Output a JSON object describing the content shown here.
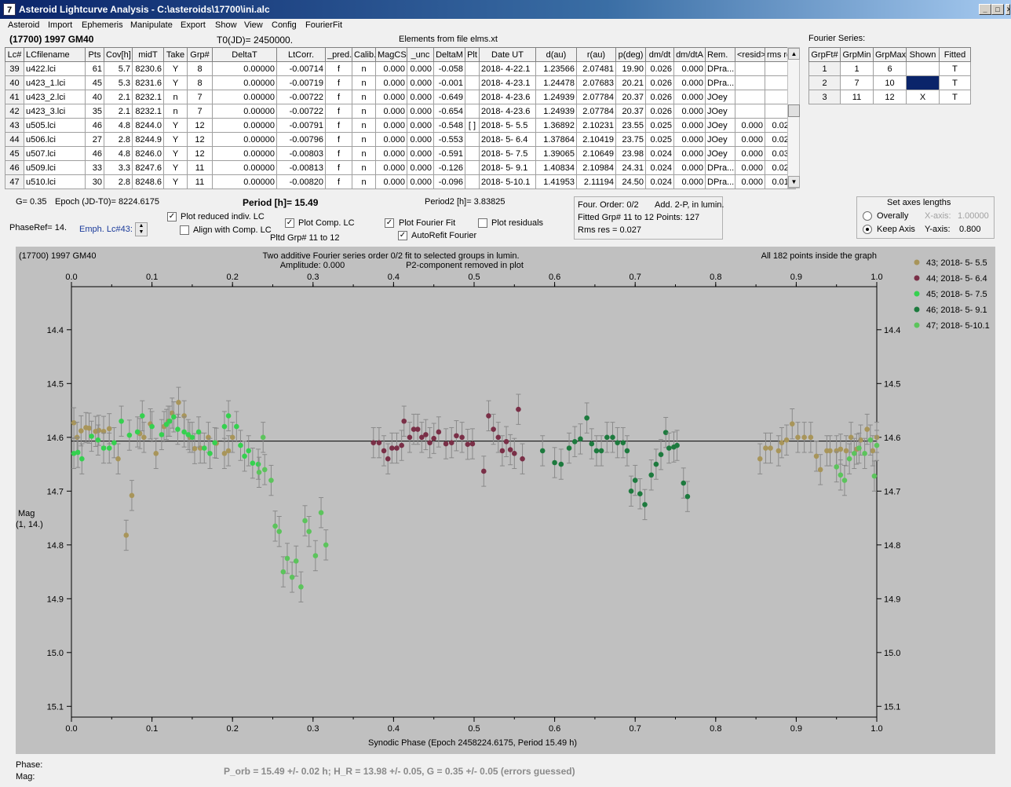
{
  "window": {
    "icon_glyph": "7",
    "title": "Asteroid Lightcurve Analysis - C:\\asteroids\\17700\\ini.alc",
    "min_glyph": "_",
    "max_glyph": "□",
    "close_glyph": "✕"
  },
  "menu": [
    "Asteroid",
    "Import",
    "Ephemeris",
    "Manipulate",
    "Export",
    "Show",
    "View",
    "Config",
    "FourierFit"
  ],
  "header": {
    "asteroid": "(17700) 1997 GM40",
    "t0": "T0(JD)= 2450000.",
    "elements": "Elements from file elms.xt",
    "fourier_label": "Fourier Series:"
  },
  "lc_table": {
    "columns": [
      "Lc#",
      "LCfilename",
      "Pts",
      "Cov[h]",
      "midT",
      "Take",
      "Grp#",
      "DeltaT",
      "LtCorr.",
      "_pred.",
      "Calib.",
      "MagCS",
      "_unc",
      "DeltaM",
      "Plt",
      "Date UT",
      "d(au)",
      "r(au)",
      "p(deg)",
      "dm/dt",
      "dm/dtA",
      "Rem.",
      "<resid>",
      "rms res"
    ],
    "rows": [
      [
        "39",
        "u422.lci",
        "61",
        "5.7",
        "8230.6",
        "Y",
        "8",
        "0.00000",
        "-0.00714",
        "f",
        "n",
        "0.000",
        "0.000",
        "-0.058",
        "",
        "2018- 4-22.1",
        "1.23566",
        "2.07481",
        "19.90",
        "0.026",
        "0.000",
        "DPra...",
        "",
        ""
      ],
      [
        "40",
        "u423_1.lci",
        "45",
        "5.3",
        "8231.6",
        "Y",
        "8",
        "0.00000",
        "-0.00719",
        "f",
        "n",
        "0.000",
        "0.000",
        "-0.001",
        "",
        "2018- 4-23.1",
        "1.24478",
        "2.07683",
        "20.21",
        "0.026",
        "0.000",
        "DPra...",
        "",
        ""
      ],
      [
        "41",
        "u423_2.lci",
        "40",
        "2.1",
        "8232.1",
        "n",
        "7",
        "0.00000",
        "-0.00722",
        "f",
        "n",
        "0.000",
        "0.000",
        "-0.649",
        "",
        "2018- 4-23.6",
        "1.24939",
        "2.07784",
        "20.37",
        "0.026",
        "0.000",
        "JOey",
        "",
        ""
      ],
      [
        "42",
        "u423_3.lci",
        "35",
        "2.1",
        "8232.1",
        "n",
        "7",
        "0.00000",
        "-0.00722",
        "f",
        "n",
        "0.000",
        "0.000",
        "-0.654",
        "",
        "2018- 4-23.6",
        "1.24939",
        "2.07784",
        "20.37",
        "0.026",
        "0.000",
        "JOey",
        "",
        ""
      ],
      [
        "43",
        "u505.lci",
        "46",
        "4.8",
        "8244.0",
        "Y",
        "12",
        "0.00000",
        "-0.00791",
        "f",
        "n",
        "0.000",
        "0.000",
        "-0.548",
        "[ ]",
        "2018- 5- 5.5",
        "1.36892",
        "2.10231",
        "23.55",
        "0.025",
        "0.000",
        "JOey",
        "0.000",
        "0.026"
      ],
      [
        "44",
        "u506.lci",
        "27",
        "2.8",
        "8244.9",
        "Y",
        "12",
        "0.00000",
        "-0.00796",
        "f",
        "n",
        "0.000",
        "0.000",
        "-0.553",
        "",
        "2018- 5- 6.4",
        "1.37864",
        "2.10419",
        "23.75",
        "0.025",
        "0.000",
        "JOey",
        "0.000",
        "0.025"
      ],
      [
        "45",
        "u507.lci",
        "46",
        "4.8",
        "8246.0",
        "Y",
        "12",
        "0.00000",
        "-0.00803",
        "f",
        "n",
        "0.000",
        "0.000",
        "-0.591",
        "",
        "2018- 5- 7.5",
        "1.39065",
        "2.10649",
        "23.98",
        "0.024",
        "0.000",
        "JOey",
        "0.000",
        "0.030"
      ],
      [
        "46",
        "u509.lci",
        "33",
        "3.3",
        "8247.6",
        "Y",
        "11",
        "0.00000",
        "-0.00813",
        "f",
        "n",
        "0.000",
        "0.000",
        "-0.126",
        "",
        "2018- 5- 9.1",
        "1.40834",
        "2.10984",
        "24.31",
        "0.024",
        "0.000",
        "DPra...",
        "0.000",
        "0.026"
      ],
      [
        "47",
        "u510.lci",
        "30",
        "2.8",
        "8248.6",
        "Y",
        "11",
        "0.00000",
        "-0.00820",
        "f",
        "n",
        "0.000",
        "0.000",
        "-0.096",
        "",
        "2018- 5-10.1",
        "1.41953",
        "2.11194",
        "24.50",
        "0.024",
        "0.000",
        "DPra...",
        "0.000",
        "0.013"
      ]
    ]
  },
  "fourier_table": {
    "columns": [
      "GrpFt#",
      "GrpMin",
      "GrpMax",
      "Shown",
      "Fitted"
    ],
    "rows": [
      [
        "1",
        "1",
        "6",
        "",
        "T"
      ],
      [
        "2",
        "7",
        "10",
        "",
        "T"
      ],
      [
        "3",
        "11",
        "12",
        "X",
        "T"
      ]
    ]
  },
  "params": {
    "g": "G= 0.35",
    "epoch": "Epoch (JD-T0)= 8224.6175",
    "period": "Period [h]= 15.49",
    "period2": "Period2 [h]= 3.83825",
    "phaseref": "PhaseRef= 14.",
    "emph": "Emph. Lc#43:"
  },
  "checks": {
    "plot_reduced": {
      "label": "Plot reduced indiv. LC",
      "checked": true
    },
    "align_comp": {
      "label": "Align with Comp. LC",
      "checked": false
    },
    "plot_comp": {
      "label": "Plot Comp. LC",
      "checked": true
    },
    "pltd_grp": "Pltd Grp#  11 to   12",
    "plot_fourier": {
      "label": "Plot Fourier Fit",
      "checked": true
    },
    "autorefit": {
      "label": "AutoRefit Fourier",
      "checked": true
    },
    "plot_resid": {
      "label": "Plot residuals",
      "checked": false
    },
    "check_mark": "✓"
  },
  "fit_info": {
    "line1a": "Four. Order:  0/2",
    "line1b": "Add. 2-P, in lumin.",
    "line2": "Fitted Grp# 11 to 12 Points: 127",
    "line3": "Rms res     = 0.027"
  },
  "axes_box": {
    "title": "Set axes lengths",
    "overally": "Overally",
    "keep_axis": "Keep Axis",
    "xaxis_label": "X-axis:",
    "xaxis_value": "1.00000",
    "yaxis_label": "Y-axis:",
    "yaxis_value": "0.800",
    "selected": "keep_axis"
  },
  "plot": {
    "top_left": "(17700) 1997 GM40",
    "title1": "Two additive Fourier series order 0/2 fit to selected groups in lumin.",
    "title2": "Amplitude: 0.000",
    "title3": "P2-component removed in plot",
    "top_right": "All 182 points inside the graph",
    "ylabel1": "Mag",
    "ylabel2": "(1, 14.)",
    "xlabel": "Synodic Phase (Epoch 2458224.6175, Period 15.49 h)"
  },
  "chart_data": {
    "type": "scatter",
    "xlim": [
      0.0,
      1.0
    ],
    "ylim": [
      14.32,
      15.12
    ],
    "y_inverted": true,
    "x_ticks": [
      "0.0",
      "0.1",
      "0.2",
      "0.3",
      "0.4",
      "0.5",
      "0.6",
      "0.7",
      "0.8",
      "0.9",
      "1.0"
    ],
    "y_ticks": [
      "14.4",
      "14.5",
      "14.6",
      "14.7",
      "14.8",
      "14.9",
      "15.0",
      "15.1"
    ],
    "fit_line_y": 14.607,
    "grid": false,
    "legend_position": "right",
    "series": [
      {
        "name": "43; 2018- 5- 5.5",
        "color": "#a8955a",
        "points": [
          [
            0.003,
            14.573
          ],
          [
            0.007,
            14.6
          ],
          [
            0.012,
            14.588
          ],
          [
            0.018,
            14.582
          ],
          [
            0.022,
            14.583
          ],
          [
            0.03,
            14.589
          ],
          [
            0.034,
            14.587
          ],
          [
            0.04,
            14.589
          ],
          [
            0.047,
            14.584
          ],
          [
            0.058,
            14.64
          ],
          [
            0.068,
            14.782
          ],
          [
            0.075,
            14.708
          ],
          [
            0.085,
            14.593
          ],
          [
            0.09,
            14.6
          ],
          [
            0.098,
            14.575
          ],
          [
            0.105,
            14.63
          ],
          [
            0.115,
            14.58
          ],
          [
            0.12,
            14.57
          ],
          [
            0.125,
            14.555
          ],
          [
            0.133,
            14.535
          ],
          [
            0.14,
            14.56
          ],
          [
            0.147,
            14.6
          ],
          [
            0.153,
            14.621
          ],
          [
            0.16,
            14.62
          ],
          [
            0.17,
            14.6
          ],
          [
            0.18,
            14.611
          ],
          [
            0.19,
            14.63
          ],
          [
            0.195,
            14.625
          ],
          [
            0.2,
            14.6
          ],
          [
            0.855,
            14.64
          ],
          [
            0.862,
            14.62
          ],
          [
            0.868,
            14.62
          ],
          [
            0.878,
            14.625
          ],
          [
            0.882,
            14.61
          ],
          [
            0.888,
            14.605
          ],
          [
            0.895,
            14.575
          ],
          [
            0.902,
            14.6
          ],
          [
            0.91,
            14.6
          ],
          [
            0.918,
            14.6
          ],
          [
            0.925,
            14.635
          ],
          [
            0.93,
            14.66
          ],
          [
            0.938,
            14.625
          ],
          [
            0.942,
            14.625
          ],
          [
            0.95,
            14.625
          ],
          [
            0.955,
            14.622
          ],
          [
            0.962,
            14.625
          ],
          [
            0.968,
            14.6
          ],
          [
            0.975,
            14.622
          ],
          [
            0.98,
            14.605
          ],
          [
            0.988,
            14.585
          ],
          [
            0.995,
            14.625
          ],
          [
            1.0,
            14.6
          ]
        ]
      },
      {
        "name": "44; 2018- 5- 6.4",
        "color": "#7a2f47",
        "points": [
          [
            0.375,
            14.61
          ],
          [
            0.382,
            14.61
          ],
          [
            0.388,
            14.625
          ],
          [
            0.393,
            14.64
          ],
          [
            0.398,
            14.62
          ],
          [
            0.404,
            14.62
          ],
          [
            0.41,
            14.615
          ],
          [
            0.413,
            14.57
          ],
          [
            0.42,
            14.6
          ],
          [
            0.425,
            14.585
          ],
          [
            0.43,
            14.585
          ],
          [
            0.435,
            14.6
          ],
          [
            0.44,
            14.595
          ],
          [
            0.445,
            14.61
          ],
          [
            0.45,
            14.602
          ],
          [
            0.456,
            14.59
          ],
          [
            0.465,
            14.612
          ],
          [
            0.472,
            14.61
          ],
          [
            0.478,
            14.597
          ],
          [
            0.485,
            14.6
          ],
          [
            0.492,
            14.613
          ],
          [
            0.498,
            14.612
          ],
          [
            0.512,
            14.663
          ],
          [
            0.518,
            14.56
          ],
          [
            0.524,
            14.585
          ],
          [
            0.53,
            14.6
          ],
          [
            0.535,
            14.625
          ],
          [
            0.54,
            14.608
          ],
          [
            0.545,
            14.623
          ],
          [
            0.55,
            14.63
          ],
          [
            0.555,
            14.548
          ],
          [
            0.56,
            14.64
          ]
        ]
      },
      {
        "name": "45; 2018- 5- 7.5",
        "color": "#35d14f",
        "points": [
          [
            0.003,
            14.63
          ],
          [
            0.008,
            14.628
          ],
          [
            0.013,
            14.64
          ],
          [
            0.025,
            14.598
          ],
          [
            0.033,
            14.605
          ],
          [
            0.04,
            14.62
          ],
          [
            0.047,
            14.62
          ],
          [
            0.053,
            14.61
          ],
          [
            0.062,
            14.57
          ],
          [
            0.072,
            14.596
          ],
          [
            0.082,
            14.59
          ],
          [
            0.088,
            14.56
          ],
          [
            0.1,
            14.58
          ],
          [
            0.112,
            14.595
          ],
          [
            0.118,
            14.576
          ],
          [
            0.122,
            14.57
          ],
          [
            0.127,
            14.562
          ],
          [
            0.132,
            14.585
          ],
          [
            0.14,
            14.59
          ],
          [
            0.145,
            14.595
          ],
          [
            0.15,
            14.6
          ],
          [
            0.158,
            14.59
          ],
          [
            0.165,
            14.62
          ],
          [
            0.172,
            14.63
          ],
          [
            0.178,
            14.61
          ],
          [
            0.19,
            14.58
          ],
          [
            0.195,
            14.56
          ],
          [
            0.205,
            14.58
          ],
          [
            0.21,
            14.615
          ],
          [
            0.215,
            14.635
          ],
          [
            0.22,
            14.625
          ],
          [
            0.225,
            14.648
          ],
          [
            0.232,
            14.65
          ]
        ]
      },
      {
        "name": "46; 2018- 5- 9.1",
        "color": "#1d7a3e",
        "points": [
          [
            0.585,
            14.625
          ],
          [
            0.6,
            14.647
          ],
          [
            0.608,
            14.65
          ],
          [
            0.618,
            14.62
          ],
          [
            0.625,
            14.608
          ],
          [
            0.632,
            14.603
          ],
          [
            0.64,
            14.564
          ],
          [
            0.646,
            14.612
          ],
          [
            0.652,
            14.625
          ],
          [
            0.658,
            14.625
          ],
          [
            0.665,
            14.6
          ],
          [
            0.672,
            14.6
          ],
          [
            0.678,
            14.61
          ],
          [
            0.685,
            14.61
          ],
          [
            0.69,
            14.625
          ],
          [
            0.695,
            14.7
          ],
          [
            0.7,
            14.68
          ],
          [
            0.706,
            14.705
          ],
          [
            0.712,
            14.725
          ],
          [
            0.72,
            14.67
          ],
          [
            0.726,
            14.65
          ],
          [
            0.732,
            14.632
          ],
          [
            0.738,
            14.591
          ],
          [
            0.742,
            14.62
          ],
          [
            0.748,
            14.618
          ],
          [
            0.752,
            14.615
          ],
          [
            0.76,
            14.685
          ],
          [
            0.765,
            14.71
          ]
        ]
      },
      {
        "name": "47; 2018- 5-10.1",
        "color": "#5cc45c",
        "points": [
          [
            0.24,
            14.66
          ],
          [
            0.248,
            14.68
          ],
          [
            0.253,
            14.765
          ],
          [
            0.258,
            14.775
          ],
          [
            0.263,
            14.85
          ],
          [
            0.268,
            14.825
          ],
          [
            0.274,
            14.86
          ],
          [
            0.279,
            14.83
          ],
          [
            0.285,
            14.878
          ],
          [
            0.29,
            14.755
          ],
          [
            0.295,
            14.775
          ],
          [
            0.303,
            14.82
          ],
          [
            0.31,
            14.74
          ],
          [
            0.316,
            14.8
          ],
          [
            0.233,
            14.665
          ],
          [
            0.238,
            14.6
          ],
          [
            0.95,
            14.655
          ],
          [
            0.955,
            14.67
          ],
          [
            0.96,
            14.68
          ],
          [
            0.966,
            14.64
          ],
          [
            0.972,
            14.63
          ],
          [
            0.978,
            14.62
          ],
          [
            0.985,
            14.63
          ],
          [
            0.992,
            14.605
          ],
          [
            0.997,
            14.672
          ],
          [
            1.0,
            14.615
          ]
        ]
      }
    ]
  },
  "status": {
    "phase_label": "Phase:",
    "mag_label": "Mag:",
    "result": "P_orb = 15.49 +/- 0.02 h; H_R = 13.98 +/- 0.05, G = 0.35 +/- 0.05 (errors guessed)"
  }
}
